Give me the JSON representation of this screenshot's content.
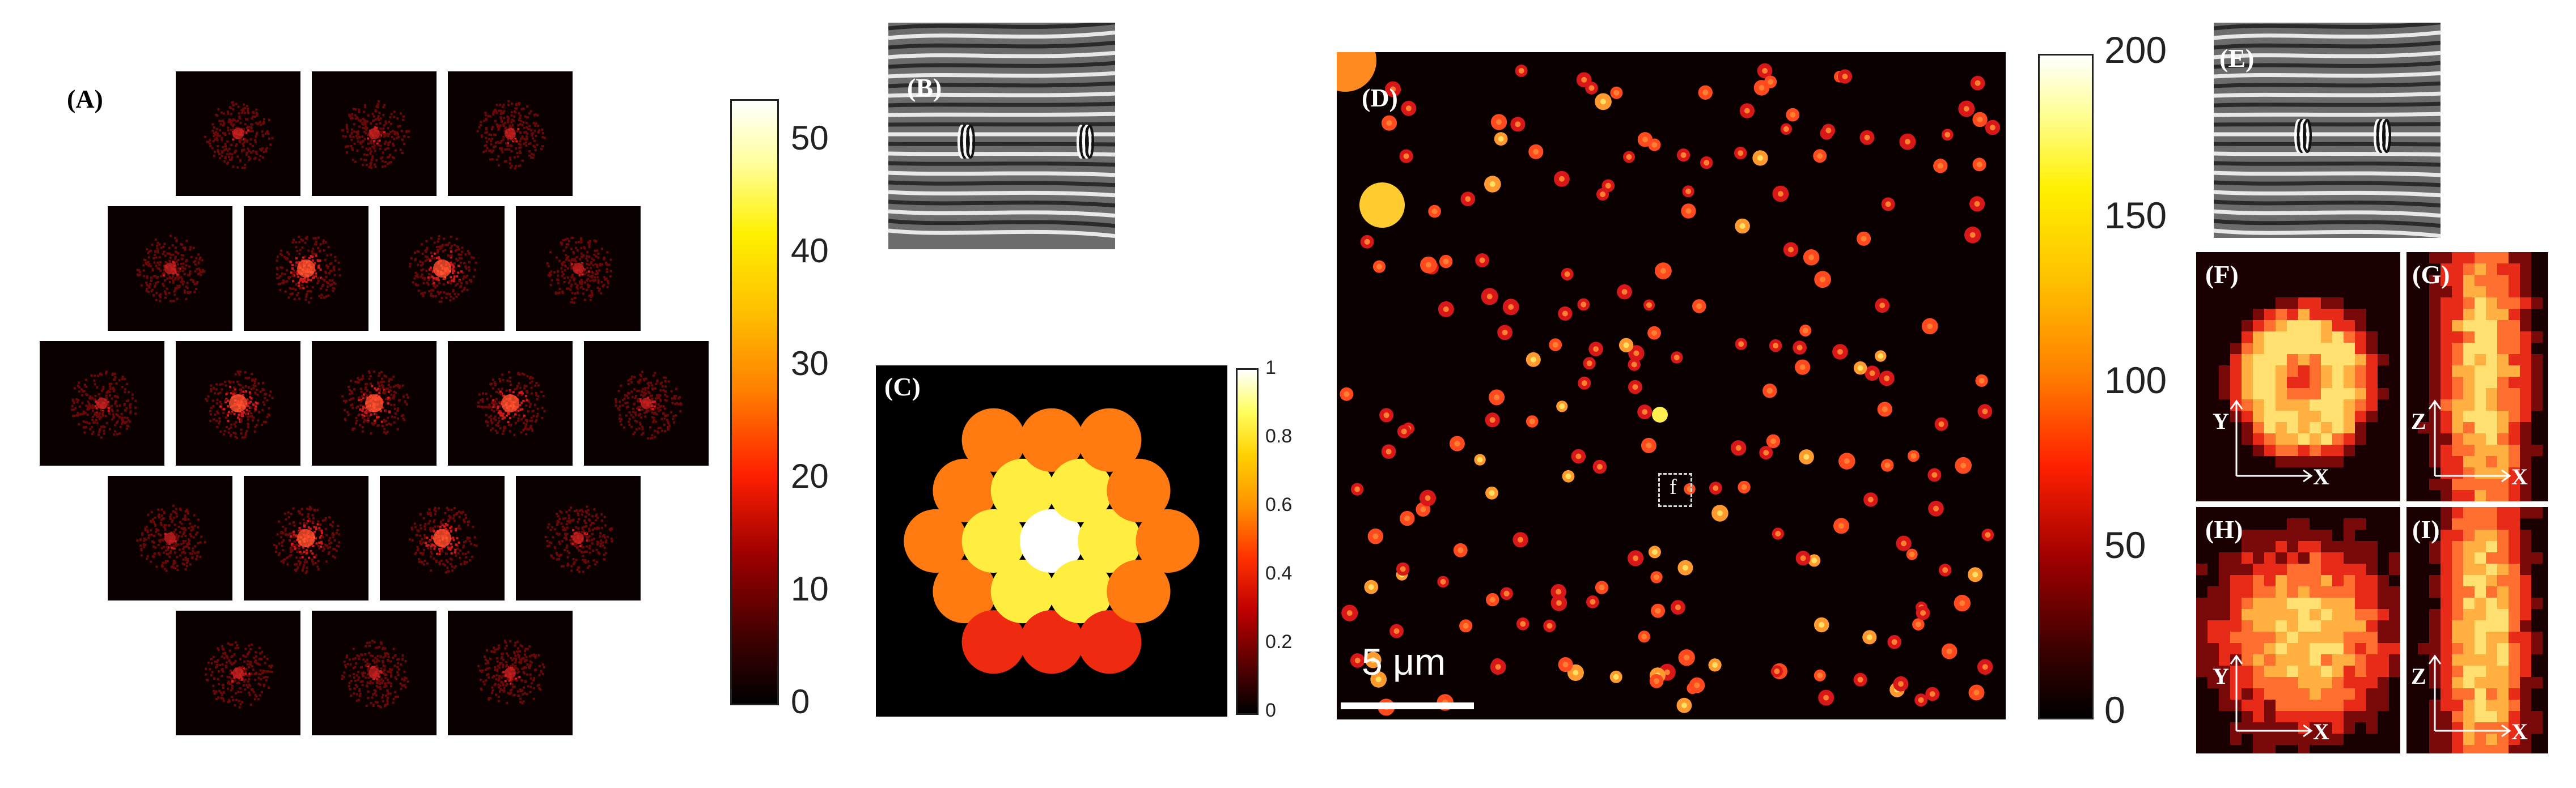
{
  "panels": {
    "A": {
      "label": "(A)"
    },
    "B": {
      "label": "(B)"
    },
    "C": {
      "label": "(C)"
    },
    "D": {
      "label": "(D)"
    },
    "E": {
      "label": "(E)"
    },
    "F": {
      "label": "(F)"
    },
    "G": {
      "label": "(G)"
    },
    "H": {
      "label": "(H)"
    },
    "I": {
      "label": "(I)"
    }
  },
  "colorbar_A": {
    "ticks": [
      "50",
      "40",
      "30",
      "20",
      "10",
      "0"
    ]
  },
  "colorbar_C": {
    "ticks": [
      "1",
      "0.8",
      "0.6",
      "0.4",
      "0.2",
      "0"
    ]
  },
  "colorbar_D": {
    "ticks": [
      "200",
      "150",
      "100",
      "50",
      "0"
    ]
  },
  "scalebar": {
    "label": "5 μm"
  },
  "roi": {
    "label": "f"
  },
  "axes": {
    "F": {
      "vertical": "Y",
      "horizontal": "X"
    },
    "G": {
      "vertical": "Z",
      "horizontal": "X"
    },
    "H": {
      "vertical": "Y",
      "horizontal": "X"
    },
    "I": {
      "vertical": "Z",
      "horizontal": "X"
    }
  },
  "colors": {
    "hot_dark": "#0a0000",
    "hot_red": "#e01010",
    "hot_orange": "#ff7a10",
    "hot_yellow": "#ffee30",
    "hot_white": "#ffffff"
  }
}
